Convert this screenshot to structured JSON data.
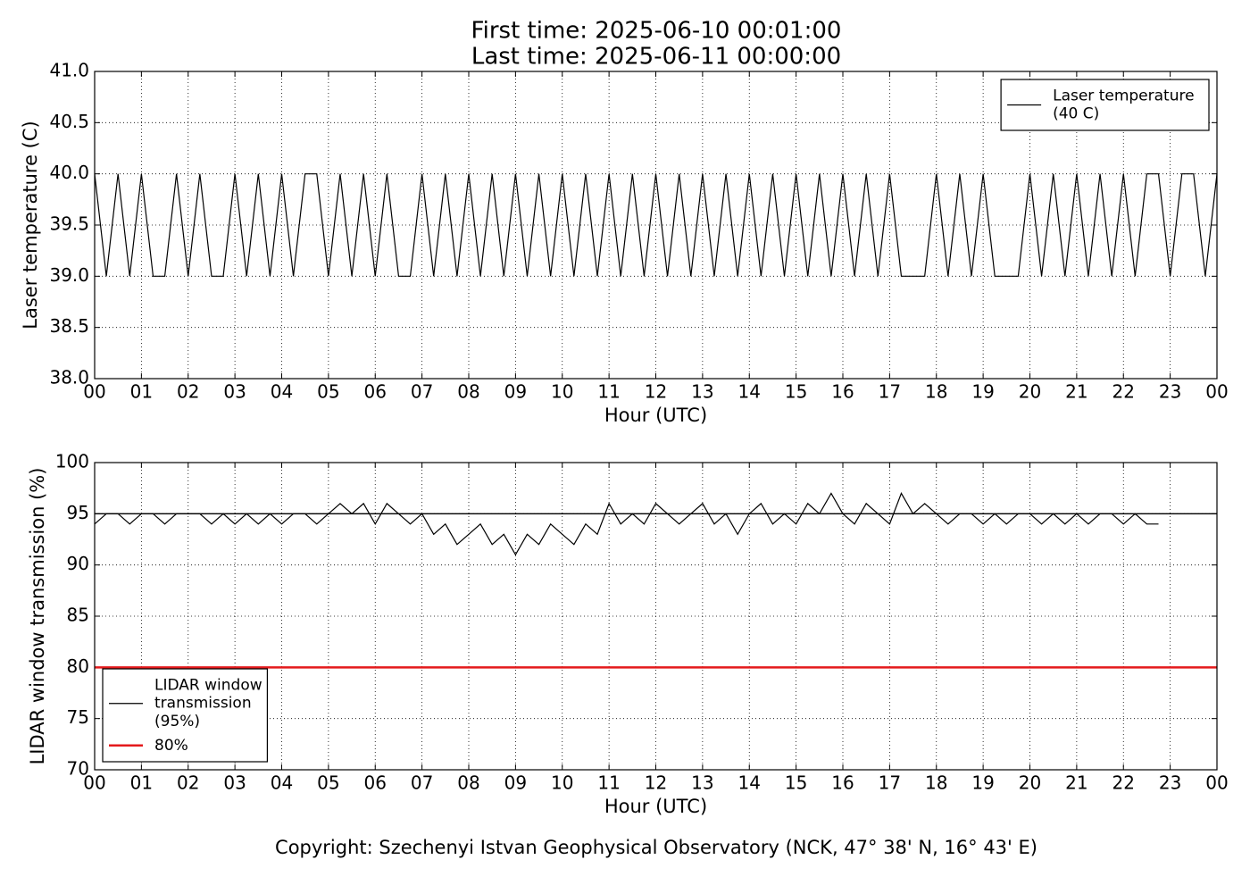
{
  "chart_data": [
    {
      "type": "line",
      "title": "First time: 2025-06-10 00:01:00",
      "subtitle": "Last time: 2025-06-11 00:00:00",
      "x_label": "Hour (UTC)",
      "y_label": "Laser temperature (C)",
      "xlim": [
        0,
        24
      ],
      "ylim": [
        38,
        41
      ],
      "xticks": [
        {
          "value": 0,
          "label": "00"
        },
        {
          "value": 1,
          "label": "01"
        },
        {
          "value": 2,
          "label": "02"
        },
        {
          "value": 3,
          "label": "03"
        },
        {
          "value": 4,
          "label": "04"
        },
        {
          "value": 5,
          "label": "05"
        },
        {
          "value": 6,
          "label": "06"
        },
        {
          "value": 7,
          "label": "07"
        },
        {
          "value": 8,
          "label": "08"
        },
        {
          "value": 9,
          "label": "09"
        },
        {
          "value": 10,
          "label": "10"
        },
        {
          "value": 11,
          "label": "11"
        },
        {
          "value": 12,
          "label": "12"
        },
        {
          "value": 13,
          "label": "13"
        },
        {
          "value": 14,
          "label": "14"
        },
        {
          "value": 15,
          "label": "15"
        },
        {
          "value": 16,
          "label": "16"
        },
        {
          "value": 17,
          "label": "17"
        },
        {
          "value": 18,
          "label": "18"
        },
        {
          "value": 19,
          "label": "19"
        },
        {
          "value": 20,
          "label": "20"
        },
        {
          "value": 21,
          "label": "21"
        },
        {
          "value": 22,
          "label": "22"
        },
        {
          "value": 23,
          "label": "23"
        },
        {
          "value": 24,
          "label": "00"
        }
      ],
      "yticks": [
        {
          "value": 38,
          "label": "38.0"
        },
        38.5,
        {
          "value": 39,
          "label": "39.0"
        },
        39.5,
        {
          "value": 40,
          "label": "40.0"
        },
        40.5,
        {
          "value": 41,
          "label": "41.0"
        }
      ],
      "grid": true,
      "legend": "upper right",
      "x": [
        0,
        0.25,
        0.5,
        0.75,
        1,
        1.25,
        1.5,
        1.75,
        2,
        2.25,
        2.5,
        2.75,
        3,
        3.25,
        3.5,
        3.75,
        4,
        4.25,
        4.5,
        4.75,
        5,
        5.25,
        5.5,
        5.75,
        6,
        6.25,
        6.5,
        6.75,
        7,
        7.25,
        7.5,
        7.75,
        8,
        8.25,
        8.5,
        8.75,
        9,
        9.25,
        9.5,
        9.75,
        10,
        10.25,
        10.5,
        10.75,
        11,
        11.25,
        11.5,
        11.75,
        12,
        12.25,
        12.5,
        12.75,
        13,
        13.25,
        13.5,
        13.75,
        14,
        14.25,
        14.5,
        14.75,
        15,
        15.25,
        15.5,
        15.75,
        16,
        16.25,
        16.5,
        16.75,
        17,
        17.25,
        17.5,
        17.75,
        18,
        18.25,
        18.5,
        18.75,
        19,
        19.25,
        19.5,
        19.75,
        20,
        20.25,
        20.5,
        20.75,
        21,
        21.25,
        21.5,
        21.75,
        22,
        22.25,
        22.5,
        22.75,
        23,
        23.25,
        23.5,
        23.75,
        24
      ],
      "series": [
        {
          "name": "Laser temperature\n(40 C)",
          "color": "#000000",
          "values": [
            40,
            39,
            40,
            39,
            40,
            39,
            39,
            40,
            39,
            40,
            39,
            39,
            40,
            39,
            40,
            39,
            40,
            39,
            40,
            40,
            39,
            40,
            39,
            40,
            39,
            40,
            39,
            39,
            40,
            39,
            40,
            39,
            40,
            39,
            40,
            39,
            40,
            39,
            40,
            39,
            40,
            39,
            40,
            39,
            40,
            39,
            40,
            39,
            40,
            39,
            40,
            39,
            40,
            39,
            40,
            39,
            40,
            39,
            40,
            39,
            40,
            39,
            40,
            39,
            40,
            39,
            40,
            39,
            40,
            39,
            39,
            39,
            40,
            39,
            40,
            39,
            40,
            39,
            39,
            39,
            40,
            39,
            40,
            39,
            40,
            39,
            40,
            39,
            40,
            39,
            40,
            40,
            39,
            40,
            40,
            39,
            40
          ]
        }
      ]
    },
    {
      "type": "line",
      "x_label": "Hour (UTC)",
      "y_label": "LIDAR window transmission (%)",
      "xlim": [
        0,
        24
      ],
      "ylim": [
        70,
        100
      ],
      "xticks": [
        {
          "value": 0,
          "label": "00"
        },
        {
          "value": 1,
          "label": "01"
        },
        {
          "value": 2,
          "label": "02"
        },
        {
          "value": 3,
          "label": "03"
        },
        {
          "value": 4,
          "label": "04"
        },
        {
          "value": 5,
          "label": "05"
        },
        {
          "value": 6,
          "label": "06"
        },
        {
          "value": 7,
          "label": "07"
        },
        {
          "value": 8,
          "label": "08"
        },
        {
          "value": 9,
          "label": "09"
        },
        {
          "value": 10,
          "label": "10"
        },
        {
          "value": 11,
          "label": "11"
        },
        {
          "value": 12,
          "label": "12"
        },
        {
          "value": 13,
          "label": "13"
        },
        {
          "value": 14,
          "label": "14"
        },
        {
          "value": 15,
          "label": "15"
        },
        {
          "value": 16,
          "label": "16"
        },
        {
          "value": 17,
          "label": "17"
        },
        {
          "value": 18,
          "label": "18"
        },
        {
          "value": 19,
          "label": "19"
        },
        {
          "value": 20,
          "label": "20"
        },
        {
          "value": 21,
          "label": "21"
        },
        {
          "value": 22,
          "label": "22"
        },
        {
          "value": 23,
          "label": "23"
        },
        {
          "value": 24,
          "label": "00"
        }
      ],
      "yticks": [
        70,
        75,
        80,
        85,
        90,
        95,
        100
      ],
      "grid": true,
      "legend": "lower left",
      "x": [
        0,
        0.25,
        0.5,
        0.75,
        1,
        1.25,
        1.5,
        1.75,
        2,
        2.25,
        2.5,
        2.75,
        3,
        3.25,
        3.5,
        3.75,
        4,
        4.25,
        4.5,
        4.75,
        5,
        5.25,
        5.5,
        5.75,
        6,
        6.25,
        6.5,
        6.75,
        7,
        7.25,
        7.5,
        7.75,
        8,
        8.25,
        8.5,
        8.75,
        9,
        9.25,
        9.5,
        9.75,
        10,
        10.25,
        10.5,
        10.75,
        11,
        11.25,
        11.5,
        11.75,
        12,
        12.25,
        12.5,
        12.75,
        13,
        13.25,
        13.5,
        13.75,
        14,
        14.25,
        14.5,
        14.75,
        15,
        15.25,
        15.5,
        15.75,
        16,
        16.25,
        16.5,
        16.75,
        17,
        17.25,
        17.5,
        17.75,
        18,
        18.25,
        18.5,
        18.75,
        19,
        19.25,
        19.5,
        19.75,
        20,
        20.25,
        20.5,
        20.75,
        21,
        21.25,
        21.5,
        21.75,
        22,
        22.25,
        22.5,
        22.75
      ],
      "series": [
        {
          "name": "LIDAR window\ntransmission\n(95%)",
          "color": "#000000",
          "values": [
            94,
            95,
            95,
            94,
            95,
            95,
            94,
            95,
            95,
            95,
            94,
            95,
            94,
            95,
            94,
            95,
            94,
            95,
            95,
            94,
            95,
            96,
            95,
            96,
            94,
            96,
            95,
            94,
            95,
            93,
            94,
            92,
            93,
            94,
            92,
            93,
            91,
            93,
            92,
            94,
            93,
            92,
            94,
            93,
            96,
            94,
            95,
            94,
            96,
            95,
            94,
            95,
            96,
            94,
            95,
            93,
            95,
            96,
            94,
            95,
            94,
            96,
            95,
            97,
            95,
            94,
            96,
            95,
            94,
            97,
            95,
            96,
            95,
            94,
            95,
            95,
            94,
            95,
            94,
            95,
            95,
            94,
            95,
            94,
            95,
            94,
            95,
            95,
            94,
            95,
            94,
            94
          ]
        }
      ],
      "hlines": [
        {
          "value": 95,
          "color": "#000000"
        },
        {
          "name": "80%",
          "value": 80,
          "color": "#e41a1c"
        }
      ]
    }
  ],
  "footer": "Copyright: Szechenyi Istvan Geophysical Observatory (NCK, 47° 38' N, 16° 43' E)"
}
